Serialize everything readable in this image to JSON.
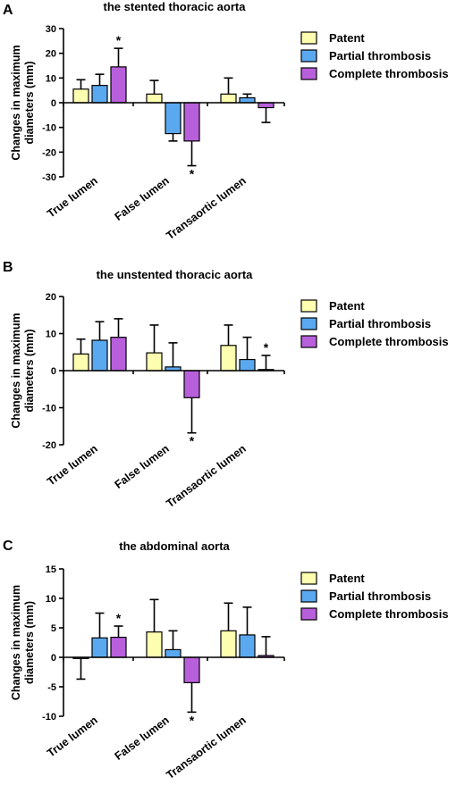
{
  "series_colors": {
    "Patent": "#fefeb0",
    "Partial thrombosis": "#5aa9f0",
    "Complete thrombosis": "#b85fdc"
  },
  "chart_data": [
    {
      "panel": "A",
      "type": "bar",
      "title": "the stented thoracic aorta",
      "ylabel": "Changes in maximum diameters (mm)",
      "ylim": [
        -30,
        30
      ],
      "yticks": [
        -30,
        -20,
        -10,
        0,
        10,
        20,
        30
      ],
      "categories": [
        "True lumen",
        "False lumen",
        "Transaortic lumen"
      ],
      "legend": [
        "Patent",
        "Partial thrombosis",
        "Complete thrombosis"
      ],
      "series": [
        {
          "name": "Patent",
          "values": [
            5.5,
            3.5,
            3.5
          ],
          "errors": [
            3.8,
            5.5,
            6.5
          ]
        },
        {
          "name": "Partial thrombosis",
          "values": [
            7.0,
            -12.5,
            2.0
          ],
          "errors": [
            4.5,
            3.0,
            1.5
          ]
        },
        {
          "name": "Complete thrombosis",
          "values": [
            14.5,
            -15.5,
            -2.0
          ],
          "errors": [
            7.5,
            10.0,
            6.0
          ]
        }
      ],
      "annotations": [
        {
          "text": "*",
          "category": 0,
          "series": 2
        },
        {
          "text": "*",
          "category": 1,
          "series": 2
        }
      ]
    },
    {
      "panel": "B",
      "type": "bar",
      "title": "the unstented thoracic aorta",
      "ylabel": "Changes in maximum diameters (mm)",
      "ylim": [
        -20,
        20
      ],
      "yticks": [
        -20,
        -10,
        0,
        10,
        20
      ],
      "categories": [
        "True lumen",
        "False lumen",
        "Transaortic lumen"
      ],
      "legend": [
        "Patent",
        "Partial thrombosis",
        "Complete thrombosis"
      ],
      "series": [
        {
          "name": "Patent",
          "values": [
            4.5,
            4.8,
            6.8
          ],
          "errors": [
            4.0,
            7.5,
            5.5
          ]
        },
        {
          "name": "Partial thrombosis",
          "values": [
            8.2,
            1.0,
            3.0
          ],
          "errors": [
            5.0,
            6.5,
            6.0
          ]
        },
        {
          "name": "Complete thrombosis",
          "values": [
            9.0,
            -7.3,
            0.3
          ],
          "errors": [
            5.0,
            9.5,
            3.8
          ]
        }
      ],
      "annotations": [
        {
          "text": "*",
          "category": 1,
          "series": 2
        },
        {
          "text": "*",
          "category": 2,
          "series": 2
        }
      ]
    },
    {
      "panel": "C",
      "type": "bar",
      "title": "the abdominal aorta",
      "ylabel": "Changes in maximum diameters (mm)",
      "ylim": [
        -10,
        15
      ],
      "yticks": [
        -10,
        -5,
        0,
        5,
        10,
        15
      ],
      "categories": [
        "True lumen",
        "False lumen",
        "Transaortic lumen"
      ],
      "legend": [
        "Patent",
        "Partial thrombosis",
        "Complete thrombosis"
      ],
      "series": [
        {
          "name": "Patent",
          "values": [
            -0.2,
            4.3,
            4.5
          ],
          "errors": [
            3.5,
            5.5,
            4.7
          ]
        },
        {
          "name": "Partial thrombosis",
          "values": [
            3.3,
            1.3,
            3.8
          ],
          "errors": [
            4.2,
            3.2,
            4.7
          ]
        },
        {
          "name": "Complete thrombosis",
          "values": [
            3.4,
            -4.3,
            0.3
          ],
          "errors": [
            1.9,
            5.0,
            3.2
          ]
        }
      ],
      "annotations": [
        {
          "text": "*",
          "category": 0,
          "series": 2
        },
        {
          "text": "*",
          "category": 1,
          "series": 2
        }
      ]
    }
  ]
}
